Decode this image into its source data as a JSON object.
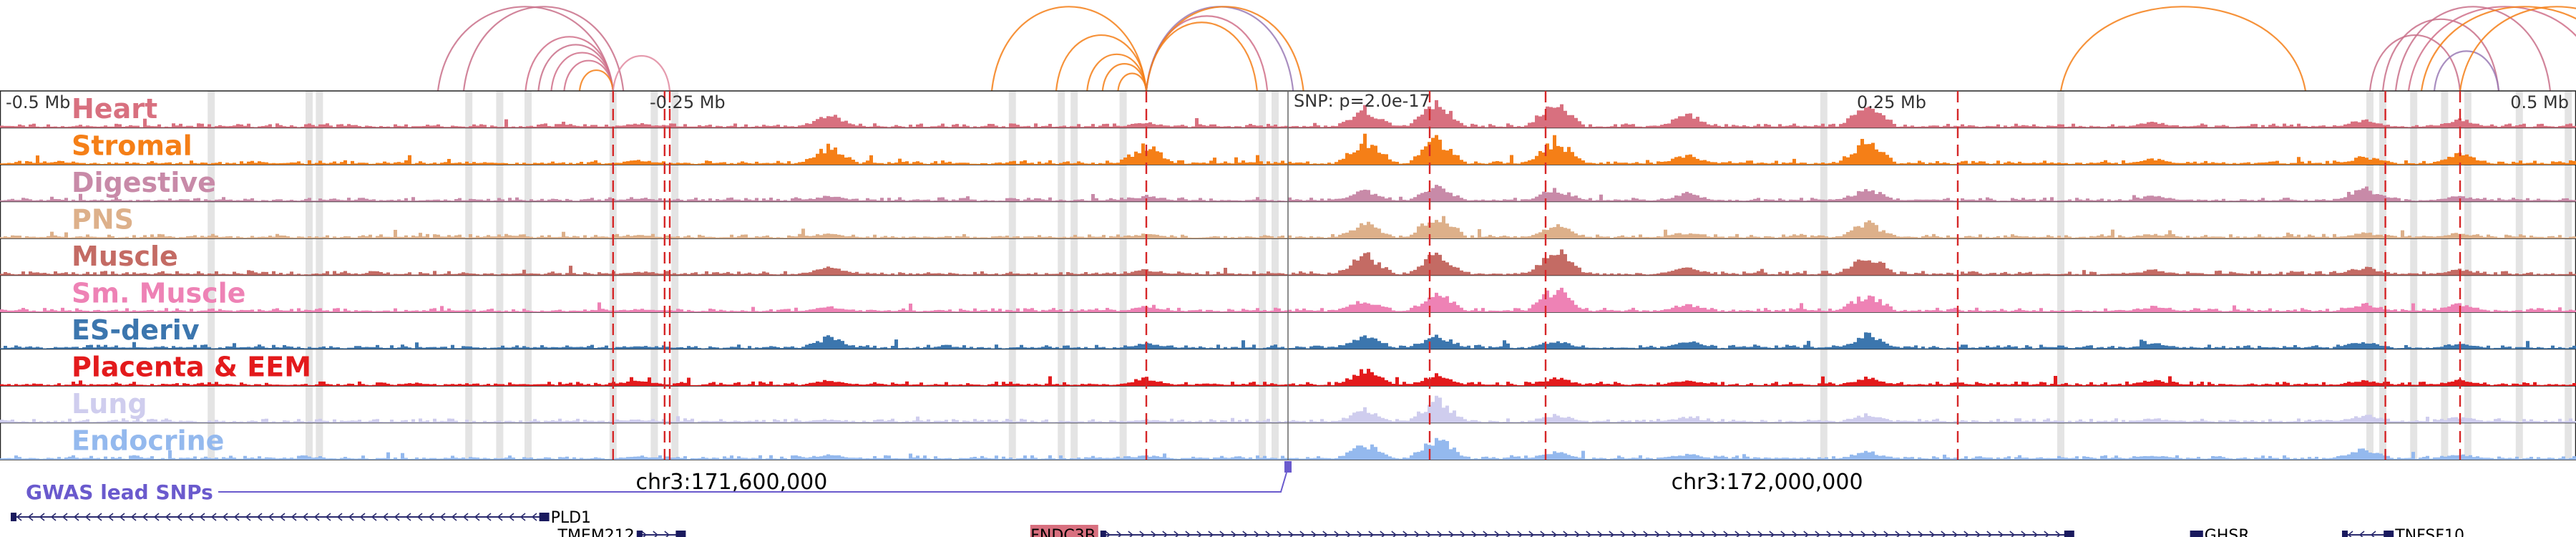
{
  "chart_data": {
    "type": "genome-browser",
    "title": "",
    "axis": {
      "range_mb": [
        -0.5,
        0.5
      ],
      "ticks": [
        {
          "pos": -0.5,
          "label": "-0.5 Mb"
        },
        {
          "pos": -0.25,
          "label": "-0.25 Mb"
        },
        {
          "pos": 0.25,
          "label": "0.25 Mb"
        },
        {
          "pos": 0.5,
          "label": "0.5 Mb"
        }
      ],
      "snp_label": "SNP: p=2.0e-17",
      "snp_pos": 0.0
    },
    "tracks": [
      {
        "name": "Heart",
        "color": "#d8707f"
      },
      {
        "name": "Stromal",
        "color": "#f57f17"
      },
      {
        "name": "Digestive",
        "color": "#c88aa8"
      },
      {
        "name": "PNS",
        "color": "#ddb08a"
      },
      {
        "name": "Muscle",
        "color": "#c46b64"
      },
      {
        "name": "Sm. Muscle",
        "color": "#ee82b5"
      },
      {
        "name": "ES-deriv",
        "color": "#3c76ae"
      },
      {
        "name": "Placenta & EEM",
        "color": "#e31a1c"
      },
      {
        "name": "Lung",
        "color": "#cfcdee"
      },
      {
        "name": "Endocrine",
        "color": "#94b9ee"
      }
    ],
    "peaks": [
      {
        "pos": -0.252,
        "heights": [
          0.15,
          0.15,
          0.1,
          0.1,
          0.1,
          0.1,
          0.1,
          0.2,
          0.1,
          0.1
        ]
      },
      {
        "pos": -0.178,
        "heights": [
          0.5,
          0.7,
          0.2,
          0.15,
          0.3,
          0.2,
          0.45,
          0.2,
          0.1,
          0.2
        ]
      },
      {
        "pos": -0.055,
        "heights": [
          0.2,
          0.75,
          0.2,
          0.15,
          0.2,
          0.2,
          0.2,
          0.3,
          0.1,
          0.15
        ]
      },
      {
        "pos": 0.03,
        "heights": [
          0.75,
          1.0,
          0.4,
          0.6,
          0.8,
          0.5,
          0.55,
          0.6,
          0.5,
          0.6
        ]
      },
      {
        "pos": 0.058,
        "heights": [
          0.95,
          1.0,
          0.6,
          0.95,
          0.95,
          0.75,
          0.55,
          0.4,
          0.9,
          0.85
        ]
      },
      {
        "pos": 0.104,
        "heights": [
          1.0,
          1.0,
          0.5,
          0.5,
          1.0,
          0.95,
          0.3,
          0.3,
          0.3,
          0.3
        ]
      },
      {
        "pos": 0.155,
        "heights": [
          0.5,
          0.35,
          0.3,
          0.2,
          0.3,
          0.3,
          0.3,
          0.2,
          0.2,
          0.2
        ]
      },
      {
        "pos": 0.225,
        "heights": [
          0.8,
          1.0,
          0.5,
          0.6,
          0.8,
          0.7,
          0.55,
          0.3,
          0.3,
          0.3
        ]
      },
      {
        "pos": 0.336,
        "heights": [
          0.2,
          0.2,
          0.2,
          0.15,
          0.2,
          0.2,
          0.2,
          0.2,
          0.15,
          0.15
        ]
      },
      {
        "pos": 0.418,
        "heights": [
          0.3,
          0.3,
          0.5,
          0.2,
          0.3,
          0.3,
          0.3,
          0.2,
          0.3,
          0.4
        ]
      },
      {
        "pos": 0.455,
        "heights": [
          0.3,
          0.4,
          0.2,
          0.2,
          0.2,
          0.3,
          0.2,
          0.2,
          0.2,
          0.2
        ]
      }
    ],
    "highlights_mb": [
      -0.418,
      -0.38,
      -0.376,
      -0.318,
      -0.306,
      -0.295,
      -0.262,
      -0.246,
      -0.238,
      -0.107,
      -0.088,
      -0.083,
      -0.064,
      -0.01,
      -0.005,
      0.208,
      0.3,
      0.42,
      0.425,
      0.437,
      0.449,
      0.458,
      0.478,
      0.497
    ],
    "dashed_lines_mb": [
      -0.262,
      -0.242,
      -0.24,
      -0.055,
      0.055,
      0.1,
      0.26,
      0.426,
      0.455
    ],
    "arcs": [
      {
        "from": -0.33,
        "to": -0.262,
        "color": "#c9708a"
      },
      {
        "from": -0.32,
        "to": -0.258,
        "color": "#c9708a"
      },
      {
        "from": -0.291,
        "to": -0.262,
        "color": "#c9708a"
      },
      {
        "from": -0.286,
        "to": -0.262,
        "color": "#d0708a"
      },
      {
        "from": -0.281,
        "to": -0.262,
        "color": "#d0708a"
      },
      {
        "from": -0.296,
        "to": -0.262,
        "color": "#d0708a"
      },
      {
        "from": -0.275,
        "to": -0.262,
        "color": "#f57f17"
      },
      {
        "from": -0.262,
        "to": -0.24,
        "color": "#e08aa0"
      },
      {
        "from": -0.115,
        "to": -0.055,
        "color": "#f57f17"
      },
      {
        "from": -0.09,
        "to": -0.055,
        "color": "#f57f17"
      },
      {
        "from": -0.078,
        "to": -0.055,
        "color": "#f57f17"
      },
      {
        "from": -0.072,
        "to": -0.055,
        "color": "#f57f17"
      },
      {
        "from": -0.066,
        "to": -0.055,
        "color": "#f57f17"
      },
      {
        "from": -0.055,
        "to": -0.012,
        "color": "#f57f17"
      },
      {
        "from": -0.055,
        "to": -0.008,
        "color": "#d0708a"
      },
      {
        "from": -0.055,
        "to": 0.002,
        "color": "#9a7ab5"
      },
      {
        "from": -0.055,
        "to": 0.006,
        "color": "#f57f17"
      },
      {
        "from": 0.3,
        "to": 0.395,
        "color": "#f57f17"
      },
      {
        "from": 0.42,
        "to": 0.455,
        "color": "#c9708a"
      },
      {
        "from": 0.425,
        "to": 0.47,
        "color": "#c9708a"
      },
      {
        "from": 0.43,
        "to": 0.49,
        "color": "#c9708a"
      },
      {
        "from": 0.435,
        "to": 0.51,
        "color": "#d0708a"
      },
      {
        "from": 0.445,
        "to": 0.47,
        "color": "#9a7ab5"
      },
      {
        "from": 0.44,
        "to": 0.52,
        "color": "#f57f17"
      },
      {
        "from": 0.455,
        "to": 0.53,
        "color": "#f57f17"
      }
    ],
    "coord_labels": [
      {
        "pos": -0.216,
        "label": "chr3:171,600,000"
      },
      {
        "pos": 0.186,
        "label": "chr3:172,000,000"
      }
    ],
    "gwas": {
      "label": "GWAS lead SNPs",
      "color": "#6a5acd",
      "snp_pos": 0.0
    },
    "genes": [
      {
        "name": "PLD1",
        "start": -0.495,
        "end": -0.289,
        "strand": "-",
        "row": 0,
        "label_side": "right",
        "highlight": false
      },
      {
        "name": "TMEM212",
        "start": -0.252,
        "end": -0.236,
        "strand": "+",
        "row": 1,
        "label_side": "left",
        "highlight": false
      },
      {
        "name": "FNDC3B",
        "start": -0.072,
        "end": 0.303,
        "strand": "+",
        "row": 1,
        "label_side": "left",
        "highlight": true
      },
      {
        "name": "GHSR",
        "start": 0.351,
        "end": 0.353,
        "strand": "-",
        "row": 1,
        "label_side": "right",
        "highlight": false
      },
      {
        "name": "TNFSF10",
        "start": 0.41,
        "end": 0.427,
        "strand": "-",
        "row": 1,
        "label_side": "right",
        "highlight": false
      }
    ]
  }
}
